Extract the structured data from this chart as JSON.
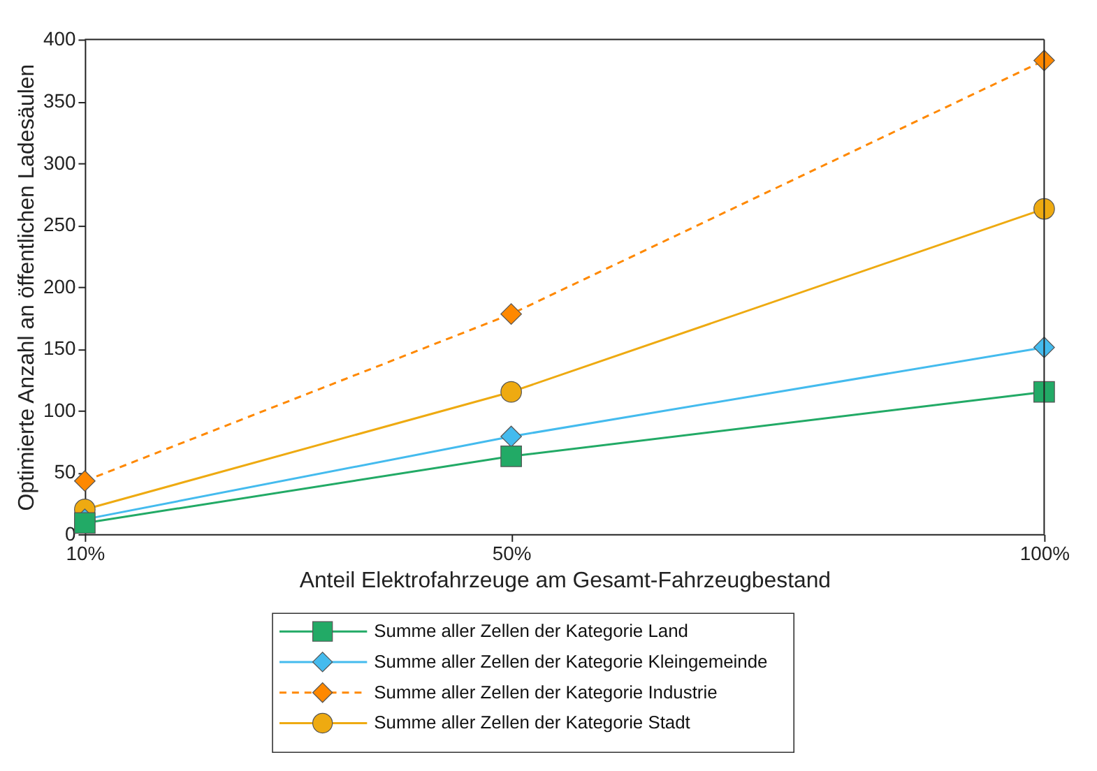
{
  "chart_data": {
    "type": "line",
    "xlabel": "Anteil Elektrofahrzeuge am Gesamt-Fahrzeugbestand",
    "ylabel": "Optimierte Anzahl an öffentlichen Ladesäulen",
    "x": [
      10,
      50,
      100
    ],
    "xlim": [
      10,
      100
    ],
    "xticks": [
      {
        "value": 10,
        "label": "10%"
      },
      {
        "value": 50,
        "label": "50%"
      },
      {
        "value": 100,
        "label": "100%"
      }
    ],
    "ylim": [
      0,
      400
    ],
    "yticks": [
      0,
      50,
      100,
      150,
      200,
      250,
      300,
      350,
      400
    ],
    "grid": false,
    "legend": "bottom",
    "series": [
      {
        "name": "Summe aller Zellen der Kategorie Land",
        "color": "#22aa66",
        "marker": "square",
        "line_style": "solid",
        "values": [
          9,
          63,
          115
        ]
      },
      {
        "name": "Summe aller Zellen der Kategorie Kleingemeinde",
        "color": "#44bbee",
        "marker": "diamond",
        "line_style": "solid",
        "values": [
          12,
          79,
          151
        ]
      },
      {
        "name": "Summe aller Zellen der Kategorie Industrie",
        "color": "#ff8800",
        "marker": "diamond",
        "line_style": "dashed",
        "values": [
          43,
          178,
          383
        ]
      },
      {
        "name": "Summe aller Zellen der Kategorie Stadt",
        "color": "#eeaa11",
        "marker": "circle",
        "line_style": "solid",
        "values": [
          20,
          115,
          263
        ]
      }
    ]
  }
}
